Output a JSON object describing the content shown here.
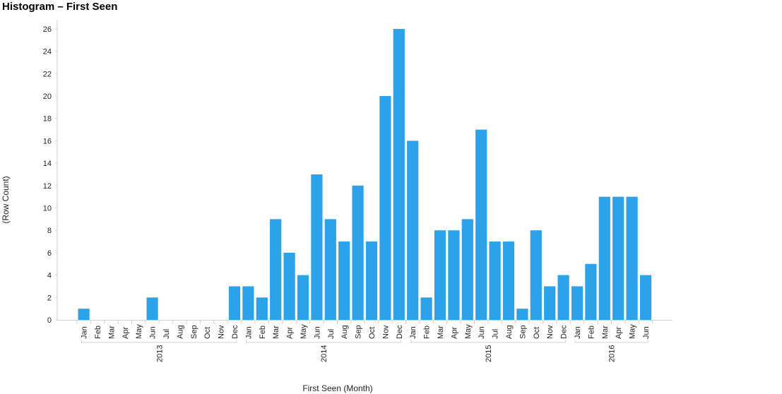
{
  "title": "Histogram – First Seen",
  "chart_data": {
    "type": "bar",
    "title": "Histogram – First Seen",
    "xlabel": "First Seen (Month)",
    "ylabel": "(Row Count)",
    "ylim": [
      0,
      27
    ],
    "yticks": [
      0,
      2,
      4,
      6,
      8,
      10,
      12,
      14,
      16,
      18,
      20,
      22,
      24,
      26
    ],
    "bar_color": "#2ba2ea",
    "years": [
      {
        "label": "2013",
        "start": 0,
        "end": 11
      },
      {
        "label": "2014",
        "start": 12,
        "end": 23
      },
      {
        "label": "2015",
        "start": 24,
        "end": 35
      },
      {
        "label": "2016",
        "start": 36,
        "end": 41
      }
    ],
    "categories": [
      "Jan",
      "Feb",
      "Mar",
      "Apr",
      "May",
      "Jun",
      "Jul",
      "Aug",
      "Sep",
      "Oct",
      "Nov",
      "Dec",
      "Jan",
      "Feb",
      "Mar",
      "Apr",
      "May",
      "Jun",
      "Jul",
      "Aug",
      "Sep",
      "Oct",
      "Nov",
      "Dec",
      "Jan",
      "Feb",
      "Mar",
      "Apr",
      "May",
      "Jun",
      "Jul",
      "Aug",
      "Sep",
      "Oct",
      "Nov",
      "Dec",
      "Jan",
      "Feb",
      "Mar",
      "Apr",
      "May",
      "Jun"
    ],
    "values": [
      1,
      0,
      0,
      0,
      0,
      2,
      0,
      0,
      0,
      0,
      0,
      3,
      3,
      2,
      9,
      6,
      4,
      13,
      9,
      7,
      12,
      7,
      20,
      26,
      16,
      2,
      8,
      8,
      9,
      17,
      7,
      7,
      1,
      8,
      3,
      4,
      3,
      5,
      11,
      11,
      11,
      4
    ]
  }
}
